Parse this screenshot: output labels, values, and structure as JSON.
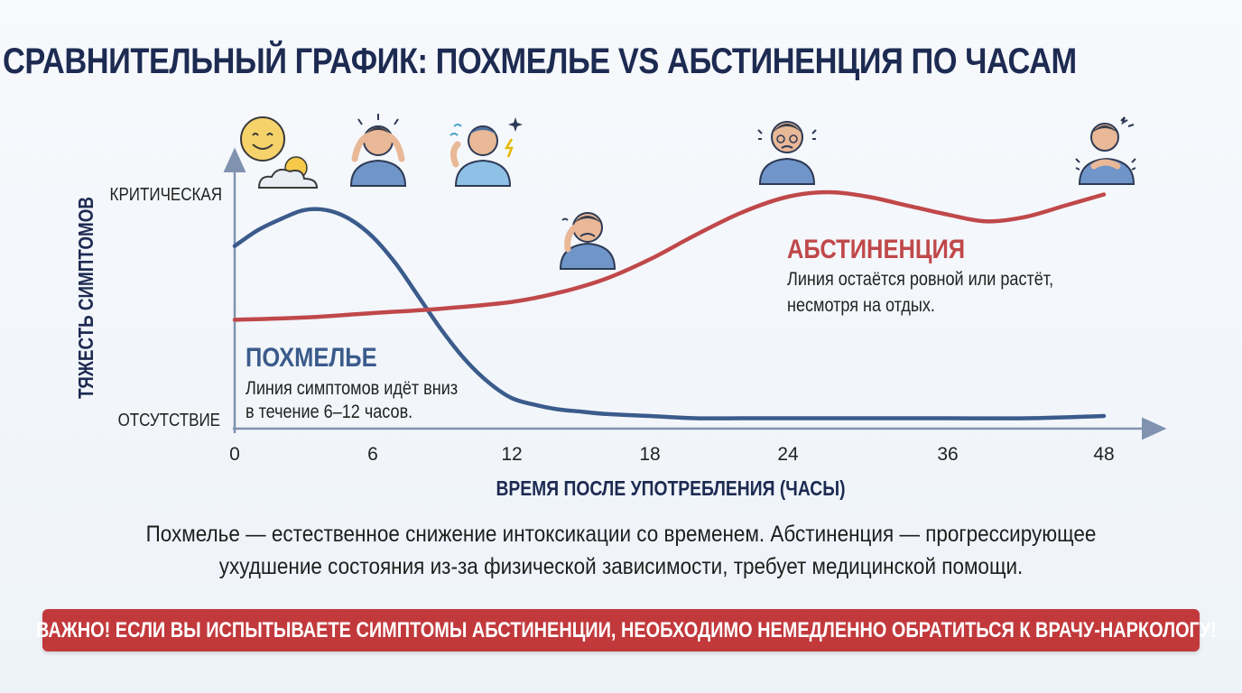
{
  "title": "СРАВНИТЕЛЬНЫЙ ГРАФИК: ПОХМЕЛЬЕ VS АБСТИНЕНЦИЯ ПО ЧАСАМ",
  "colors": {
    "hangover": "#3b5b8c",
    "withdrawal": "#c0484a",
    "axis": "#7f93b0",
    "warning_bg": "#c2393c"
  },
  "chart_data": {
    "type": "line",
    "xlabel": "ВРЕМЯ ПОСЛЕ УПОТРЕБЛЕНИЯ (ЧАСЫ)",
    "ylabel": "ТЯЖЕСТЬ СИМПТОМОВ",
    "x_ticks": [
      "0",
      "6",
      "12",
      "18",
      "24",
      "36",
      "48"
    ],
    "y_ticks": [
      "ОТСУТСТВИЕ",
      "КРИТИЧЕСКАЯ"
    ],
    "x_scale": "categorical-tick positions (0, 6, 12, 18, 24, 36, 48)",
    "ylim": [
      0,
      1
    ],
    "series": [
      {
        "name": "ПОХМЕЛЬЕ",
        "note": "Линия симптомов идёт вниз",
        "note2": "в течение 6–12 часов.",
        "x": [
          0,
          1,
          2,
          3,
          4,
          5,
          6,
          7,
          8,
          9,
          10,
          11,
          12,
          13,
          14,
          15,
          16,
          18,
          20,
          22,
          24,
          30,
          36,
          42,
          48
        ],
        "values": [
          0.78,
          0.85,
          0.9,
          0.94,
          0.94,
          0.9,
          0.82,
          0.7,
          0.55,
          0.4,
          0.27,
          0.17,
          0.1,
          0.07,
          0.05,
          0.04,
          0.03,
          0.02,
          0.01,
          0.01,
          0.01,
          0.01,
          0.01,
          0.01,
          0.02
        ]
      },
      {
        "name": "АБСТИНЕНЦИЯ",
        "note": "Линия остаётся ровной или растёт,",
        "note2": "несмотря на отдых.",
        "x": [
          0,
          3,
          6,
          9,
          12,
          14,
          16,
          18,
          20,
          22,
          24,
          27,
          30,
          33,
          36,
          39,
          42,
          45,
          48
        ],
        "values": [
          0.45,
          0.46,
          0.48,
          0.5,
          0.53,
          0.57,
          0.63,
          0.72,
          0.83,
          0.93,
          1.0,
          1.02,
          1.0,
          0.96,
          0.92,
          0.89,
          0.91,
          0.96,
          1.01
        ]
      }
    ],
    "icons": [
      {
        "name": "sun-cloud-icon",
        "x": 1
      },
      {
        "name": "headache-man-icon",
        "x": 5.7
      },
      {
        "name": "thirsty-man-icon",
        "x": 10.5
      },
      {
        "name": "sad-man-icon",
        "x": 14.8
      },
      {
        "name": "anxious-man-icon",
        "x": 24
      },
      {
        "name": "shivering-man-icon",
        "x": 46.3
      }
    ]
  },
  "caption_line1": "Похмелье — естественное снижение интоксикации со временем. Абстиненция — прогрессирующее",
  "caption_line2": "ухудшение состояния из-за физической зависимости, требует медицинской помощи.",
  "warning": "ВАЖНО! ЕСЛИ ВЫ ИСПЫТЫВАЕТЕ СИМПТОМЫ АБСТИНЕНЦИИ, НЕОБХОДИМО НЕМЕДЛЕННО ОБРАТИТЬСЯ К ВРАЧУ-НАРКОЛОГУ!"
}
